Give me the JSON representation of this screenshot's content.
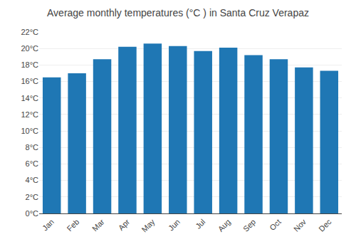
{
  "chart_data": {
    "type": "bar",
    "title": "Average monthly temperatures (°C ) in Santa Cruz Verapaz",
    "categories": [
      "Jan",
      "Feb",
      "Mar",
      "Apr",
      "May",
      "Jun",
      "Jul",
      "Aug",
      "Sep",
      "Oct",
      "Nov",
      "Dec"
    ],
    "values": [
      16.5,
      17.0,
      18.7,
      20.2,
      20.6,
      20.3,
      19.7,
      20.1,
      19.2,
      18.7,
      17.7,
      17.3
    ],
    "ylim": [
      0,
      22
    ],
    "yticks": [
      {
        "value": 0,
        "label": "0°C"
      },
      {
        "value": 2,
        "label": "2°C"
      },
      {
        "value": 4,
        "label": "4°C"
      },
      {
        "value": 6,
        "label": "6°C"
      },
      {
        "value": 8,
        "label": "8°C"
      },
      {
        "value": 10,
        "label": "10°C"
      },
      {
        "value": 12,
        "label": "12°C"
      },
      {
        "value": 14,
        "label": "14°C"
      },
      {
        "value": 16,
        "label": "16°C"
      },
      {
        "value": 18,
        "label": "18°C"
      },
      {
        "value": 20,
        "label": "20°C"
      },
      {
        "value": 22,
        "label": "22°C"
      }
    ],
    "grid": true
  }
}
